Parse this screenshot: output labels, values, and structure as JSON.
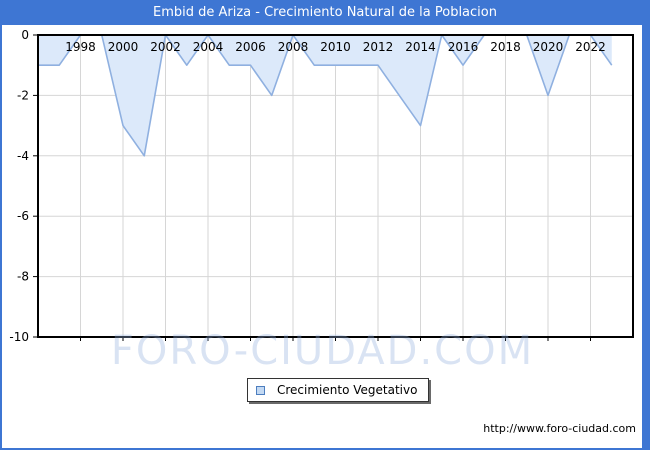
{
  "window": {
    "title": "Embid de Ariza - Crecimiento Natural de la Poblacion",
    "accent_color": "#3e76d3",
    "footer_url": "http://www.foro-ciudad.com"
  },
  "watermark": {
    "text": "FORO-CIUDAD.COM"
  },
  "legend": {
    "label": "Crecimiento Vegetativo",
    "swatch_fill": "#c3d9f3",
    "swatch_border": "#4d7ebf"
  },
  "chart_data": {
    "type": "area",
    "title": "Embid de Ariza - Crecimiento Natural de la Poblacion",
    "series_name": "Crecimiento Vegetativo",
    "x": [
      1996,
      1997,
      1998,
      1999,
      2000,
      2001,
      2002,
      2003,
      2004,
      2005,
      2006,
      2007,
      2008,
      2009,
      2010,
      2011,
      2012,
      2013,
      2014,
      2015,
      2016,
      2017,
      2018,
      2019,
      2020,
      2021,
      2022,
      2023
    ],
    "values": [
      -1,
      -1,
      0,
      0,
      -3,
      -4,
      0,
      -1,
      0,
      -1,
      -1,
      -2,
      0,
      -1,
      -1,
      -1,
      -1,
      -2,
      -3,
      0,
      -1,
      0,
      0,
      0,
      -2,
      0,
      0,
      -1
    ],
    "xlim": [
      1996,
      2024
    ],
    "ylim": [
      -10,
      0
    ],
    "x_ticks": [
      1998,
      2000,
      2002,
      2004,
      2006,
      2008,
      2010,
      2012,
      2014,
      2016,
      2018,
      2020,
      2022
    ],
    "y_ticks": [
      0,
      -2,
      -4,
      -6,
      -8,
      -10
    ],
    "grid": true,
    "legend_position": "bottom",
    "fill_color": "#dce9fa",
    "line_color": "#8fb0e0",
    "grid_color": "#d6d6d6",
    "border_color": "#000000",
    "tick_label_color": "#000000"
  }
}
